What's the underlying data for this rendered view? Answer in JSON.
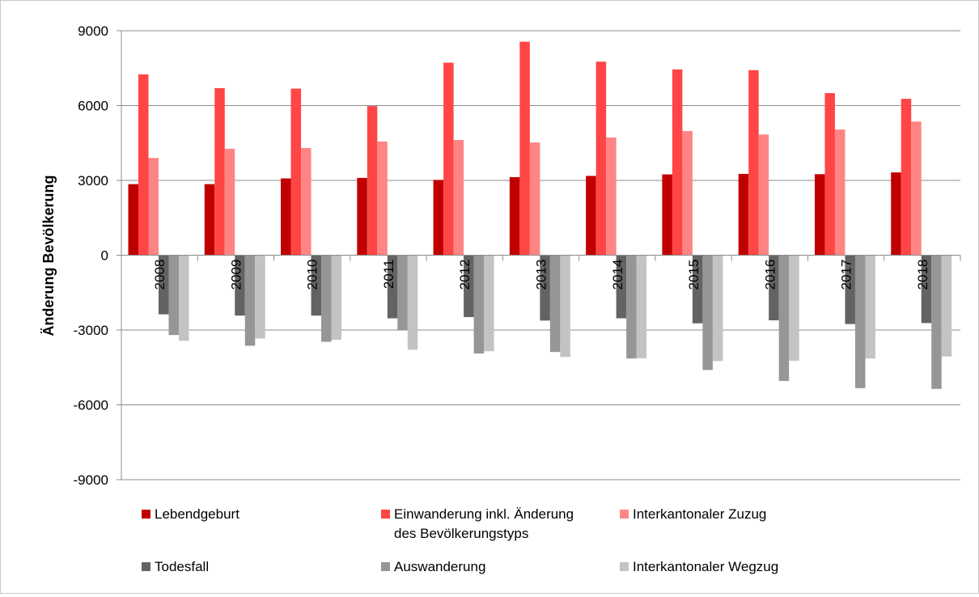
{
  "chart_data": {
    "type": "bar",
    "title": "",
    "xlabel": "",
    "ylabel": "Änderung Bevölkerung",
    "ylim": [
      -9000,
      9000
    ],
    "yticks": [
      9000,
      6000,
      3000,
      0,
      -3000,
      -6000,
      -9000
    ],
    "ytick_labels": [
      "9000",
      "6000",
      "3000",
      "0",
      "-3000",
      "-6000",
      "-9000"
    ],
    "grid": "horizontal",
    "legend_position": "bottom",
    "categories": [
      "2008",
      "2009",
      "2010",
      "2011",
      "2012",
      "2013",
      "2014",
      "2015",
      "2016",
      "2017",
      "2018"
    ],
    "series": [
      {
        "name": "Lebendgeburt",
        "color": "#c00000",
        "values": [
          2850,
          2850,
          3080,
          3100,
          3020,
          3130,
          3180,
          3240,
          3260,
          3250,
          3320
        ]
      },
      {
        "name": "Einwanderung inkl. Änderung des Bevölkerungstyps",
        "name_lines": [
          "Einwanderung inkl. Änderung",
          "des Bevölkerungstyps"
        ],
        "color": "#ff4545",
        "values": [
          7250,
          6700,
          6680,
          5980,
          7720,
          8560,
          7760,
          7450,
          7420,
          6500,
          6270
        ]
      },
      {
        "name": "Interkantonaler Zuzug",
        "color": "#ff8585",
        "values": [
          3900,
          4270,
          4300,
          4560,
          4620,
          4520,
          4720,
          4980,
          4840,
          5040,
          5360
        ]
      },
      {
        "name": "Todesfall",
        "color": "#636363",
        "values": [
          -2370,
          -2420,
          -2420,
          -2530,
          -2480,
          -2620,
          -2530,
          -2730,
          -2610,
          -2760,
          -2720
        ]
      },
      {
        "name": "Auswanderung",
        "color": "#969696",
        "values": [
          -3200,
          -3630,
          -3470,
          -3010,
          -3940,
          -3880,
          -4140,
          -4600,
          -5040,
          -5330,
          -5360
        ]
      },
      {
        "name": "Interkantonaler Wegzug",
        "color": "#c3c3c3",
        "values": [
          -3430,
          -3340,
          -3390,
          -3790,
          -3850,
          -4080,
          -4130,
          -4240,
          -4230,
          -4140,
          -4060
        ]
      }
    ]
  }
}
